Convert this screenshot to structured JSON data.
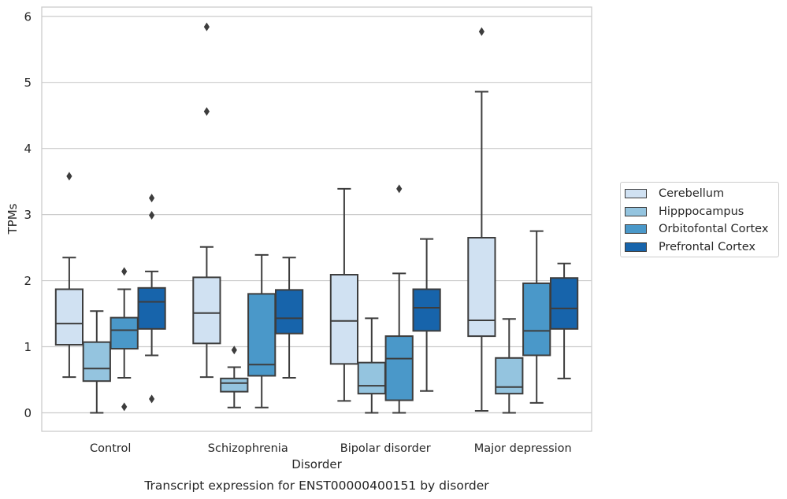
{
  "chart_data": {
    "type": "box",
    "caption": "Transcript expression for ENST00000400151 by disorder",
    "xlabel": "Disorder",
    "ylabel": "TPMs",
    "ylim": [
      -0.28,
      6.14
    ],
    "yticks": [
      0,
      1,
      2,
      3,
      4,
      5,
      6
    ],
    "grid": "horizontal",
    "legend_position": "right",
    "categories": [
      "Control",
      "Schizophrenia",
      "Bipolar disorder",
      "Major depression"
    ],
    "series": [
      {
        "name": "Cerebellum",
        "color": "#d0e1f2",
        "boxes": [
          {
            "whisker_low": 0.54,
            "q1": 1.03,
            "median": 1.35,
            "q3": 1.87,
            "whisker_high": 2.35,
            "outliers": [
              3.58
            ]
          },
          {
            "whisker_low": 0.54,
            "q1": 1.05,
            "median": 1.51,
            "q3": 2.05,
            "whisker_high": 2.51,
            "outliers": [
              4.56,
              5.84
            ]
          },
          {
            "whisker_low": 0.18,
            "q1": 0.74,
            "median": 1.39,
            "q3": 2.09,
            "whisker_high": 3.39,
            "outliers": []
          },
          {
            "whisker_low": 0.03,
            "q1": 1.16,
            "median": 1.4,
            "q3": 2.65,
            "whisker_high": 4.86,
            "outliers": [
              5.77
            ]
          }
        ]
      },
      {
        "name": "Hipppocampus",
        "color": "#94c4df",
        "boxes": [
          {
            "whisker_low": 0.0,
            "q1": 0.48,
            "median": 0.67,
            "q3": 1.07,
            "whisker_high": 1.54,
            "outliers": []
          },
          {
            "whisker_low": 0.08,
            "q1": 0.32,
            "median": 0.45,
            "q3": 0.52,
            "whisker_high": 0.69,
            "outliers": [
              0.95
            ]
          },
          {
            "whisker_low": 0.0,
            "q1": 0.29,
            "median": 0.41,
            "q3": 0.76,
            "whisker_high": 1.43,
            "outliers": []
          },
          {
            "whisker_low": 0.0,
            "q1": 0.29,
            "median": 0.39,
            "q3": 0.83,
            "whisker_high": 1.42,
            "outliers": []
          }
        ]
      },
      {
        "name": "Orbitofontal Cortex",
        "color": "#4a98c9",
        "boxes": [
          {
            "whisker_low": 0.53,
            "q1": 0.97,
            "median": 1.25,
            "q3": 1.44,
            "whisker_high": 1.87,
            "outliers": [
              0.09,
              2.14
            ]
          },
          {
            "whisker_low": 0.08,
            "q1": 0.56,
            "median": 0.73,
            "q3": 1.8,
            "whisker_high": 2.39,
            "outliers": []
          },
          {
            "whisker_low": 0.0,
            "q1": 0.19,
            "median": 0.82,
            "q3": 1.16,
            "whisker_high": 2.11,
            "outliers": [
              3.39
            ]
          },
          {
            "whisker_low": 0.15,
            "q1": 0.87,
            "median": 1.24,
            "q3": 1.96,
            "whisker_high": 2.75,
            "outliers": []
          }
        ]
      },
      {
        "name": "Prefrontal Cortex",
        "color": "#1764ab",
        "boxes": [
          {
            "whisker_low": 0.87,
            "q1": 1.27,
            "median": 1.68,
            "q3": 1.89,
            "whisker_high": 2.14,
            "outliers": [
              0.21,
              2.99,
              3.25
            ]
          },
          {
            "whisker_low": 0.53,
            "q1": 1.2,
            "median": 1.43,
            "q3": 1.86,
            "whisker_high": 2.35,
            "outliers": []
          },
          {
            "whisker_low": 0.33,
            "q1": 1.24,
            "median": 1.59,
            "q3": 1.87,
            "whisker_high": 2.63,
            "outliers": []
          },
          {
            "whisker_low": 0.52,
            "q1": 1.27,
            "median": 1.58,
            "q3": 2.04,
            "whisker_high": 2.26,
            "outliers": []
          }
        ]
      }
    ]
  }
}
